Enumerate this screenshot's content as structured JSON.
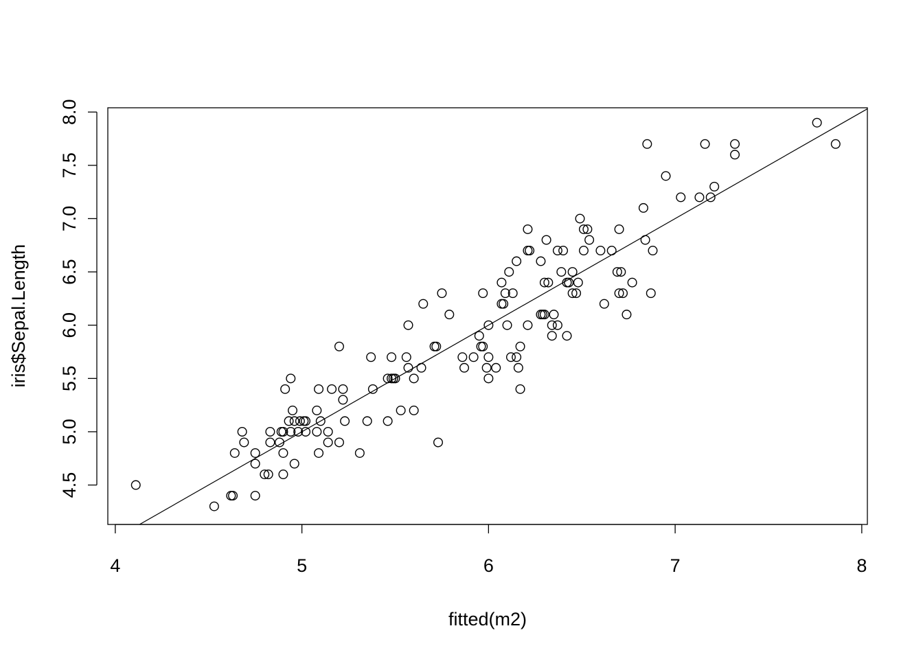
{
  "chart_data": {
    "type": "scatter",
    "title": "",
    "xlabel": "fitted(m2)",
    "ylabel": "iris$Sepal.Length",
    "xlim": [
      3.96,
      8.03
    ],
    "ylim": [
      4.13,
      8.04
    ],
    "x_ticks": [
      "4",
      "5",
      "6",
      "7",
      "8"
    ],
    "y_ticks": [
      "4.5",
      "5.0",
      "5.5",
      "6.0",
      "6.5",
      "7.0",
      "7.5",
      "8.0"
    ],
    "grid": false,
    "marker": "open-circle",
    "reference_line": {
      "intercept": 0,
      "slope": 1
    },
    "points": [
      [
        4.11,
        4.5
      ],
      [
        4.53,
        4.3
      ],
      [
        4.62,
        4.4
      ],
      [
        4.63,
        4.4
      ],
      [
        4.75,
        4.4
      ],
      [
        4.64,
        4.8
      ],
      [
        4.68,
        5.0
      ],
      [
        4.69,
        4.9
      ],
      [
        4.75,
        4.8
      ],
      [
        4.75,
        4.7
      ],
      [
        4.8,
        4.6
      ],
      [
        4.82,
        4.6
      ],
      [
        4.83,
        4.9
      ],
      [
        4.83,
        5.0
      ],
      [
        4.88,
        4.9
      ],
      [
        4.89,
        5.0
      ],
      [
        4.9,
        5.0
      ],
      [
        4.9,
        4.8
      ],
      [
        4.9,
        4.6
      ],
      [
        4.91,
        5.4
      ],
      [
        4.93,
        5.1
      ],
      [
        4.94,
        5.0
      ],
      [
        4.94,
        5.5
      ],
      [
        4.95,
        5.2
      ],
      [
        4.96,
        5.1
      ],
      [
        4.96,
        4.7
      ],
      [
        4.98,
        5.0
      ],
      [
        4.99,
        5.1
      ],
      [
        5.01,
        5.1
      ],
      [
        5.02,
        5.1
      ],
      [
        5.02,
        5.0
      ],
      [
        5.08,
        5.0
      ],
      [
        5.08,
        5.2
      ],
      [
        5.09,
        5.4
      ],
      [
        5.09,
        4.8
      ],
      [
        5.1,
        5.1
      ],
      [
        5.14,
        4.9
      ],
      [
        5.14,
        5.0
      ],
      [
        5.16,
        5.4
      ],
      [
        5.2,
        5.8
      ],
      [
        5.2,
        4.9
      ],
      [
        5.22,
        5.4
      ],
      [
        5.22,
        5.3
      ],
      [
        5.23,
        5.1
      ],
      [
        5.31,
        4.8
      ],
      [
        5.35,
        5.1
      ],
      [
        5.37,
        5.7
      ],
      [
        5.38,
        5.4
      ],
      [
        5.46,
        5.1
      ],
      [
        5.46,
        5.5
      ],
      [
        5.48,
        5.7
      ],
      [
        5.48,
        5.5
      ],
      [
        5.49,
        5.5
      ],
      [
        5.5,
        5.5
      ],
      [
        5.53,
        5.2
      ],
      [
        5.56,
        5.7
      ],
      [
        5.57,
        6.0
      ],
      [
        5.57,
        5.6
      ],
      [
        5.6,
        5.2
      ],
      [
        5.6,
        5.5
      ],
      [
        5.64,
        5.6
      ],
      [
        5.65,
        6.2
      ],
      [
        5.71,
        5.8
      ],
      [
        5.72,
        5.8
      ],
      [
        5.73,
        4.9
      ],
      [
        5.75,
        6.3
      ],
      [
        5.79,
        6.1
      ],
      [
        5.86,
        5.7
      ],
      [
        5.87,
        5.6
      ],
      [
        5.92,
        5.7
      ],
      [
        5.95,
        5.9
      ],
      [
        5.96,
        5.8
      ],
      [
        5.97,
        5.8
      ],
      [
        5.97,
        6.3
      ],
      [
        5.99,
        5.6
      ],
      [
        6.0,
        6.0
      ],
      [
        6.0,
        5.7
      ],
      [
        6.0,
        5.5
      ],
      [
        6.04,
        5.6
      ],
      [
        6.07,
        6.4
      ],
      [
        6.07,
        6.2
      ],
      [
        6.08,
        6.2
      ],
      [
        6.09,
        6.3
      ],
      [
        6.1,
        6.0
      ],
      [
        6.11,
        6.5
      ],
      [
        6.12,
        5.7
      ],
      [
        6.13,
        6.3
      ],
      [
        6.15,
        5.7
      ],
      [
        6.15,
        6.6
      ],
      [
        6.16,
        5.6
      ],
      [
        6.17,
        5.4
      ],
      [
        6.17,
        5.8
      ],
      [
        6.21,
        6.9
      ],
      [
        6.21,
        6.7
      ],
      [
        6.22,
        6.7
      ],
      [
        6.21,
        6.0
      ],
      [
        6.28,
        6.1
      ],
      [
        6.29,
        6.1
      ],
      [
        6.3,
        6.1
      ],
      [
        6.28,
        6.6
      ],
      [
        6.3,
        6.4
      ],
      [
        6.31,
        6.8
      ],
      [
        6.32,
        6.4
      ],
      [
        6.34,
        6.0
      ],
      [
        6.34,
        5.9
      ],
      [
        6.35,
        6.1
      ],
      [
        6.37,
        6.7
      ],
      [
        6.37,
        6.0
      ],
      [
        6.39,
        6.5
      ],
      [
        6.4,
        6.7
      ],
      [
        6.42,
        6.4
      ],
      [
        6.43,
        6.4
      ],
      [
        6.42,
        5.9
      ],
      [
        6.45,
        6.5
      ],
      [
        6.45,
        6.3
      ],
      [
        6.47,
        6.3
      ],
      [
        6.48,
        6.4
      ],
      [
        6.49,
        7.0
      ],
      [
        6.51,
        6.9
      ],
      [
        6.51,
        6.7
      ],
      [
        6.53,
        6.9
      ],
      [
        6.54,
        6.8
      ],
      [
        6.6,
        6.7
      ],
      [
        6.62,
        6.2
      ],
      [
        6.66,
        6.7
      ],
      [
        6.69,
        6.5
      ],
      [
        6.71,
        6.5
      ],
      [
        6.7,
        6.9
      ],
      [
        6.7,
        6.3
      ],
      [
        6.72,
        6.3
      ],
      [
        6.74,
        6.1
      ],
      [
        6.77,
        6.4
      ],
      [
        6.83,
        7.1
      ],
      [
        6.84,
        6.8
      ],
      [
        6.85,
        7.7
      ],
      [
        6.87,
        6.3
      ],
      [
        6.88,
        6.7
      ],
      [
        6.95,
        7.4
      ],
      [
        7.03,
        7.2
      ],
      [
        7.13,
        7.2
      ],
      [
        7.16,
        7.7
      ],
      [
        7.19,
        7.2
      ],
      [
        7.21,
        7.3
      ],
      [
        7.32,
        7.7
      ],
      [
        7.32,
        7.6
      ],
      [
        7.76,
        7.9
      ],
      [
        7.86,
        7.7
      ]
    ]
  }
}
